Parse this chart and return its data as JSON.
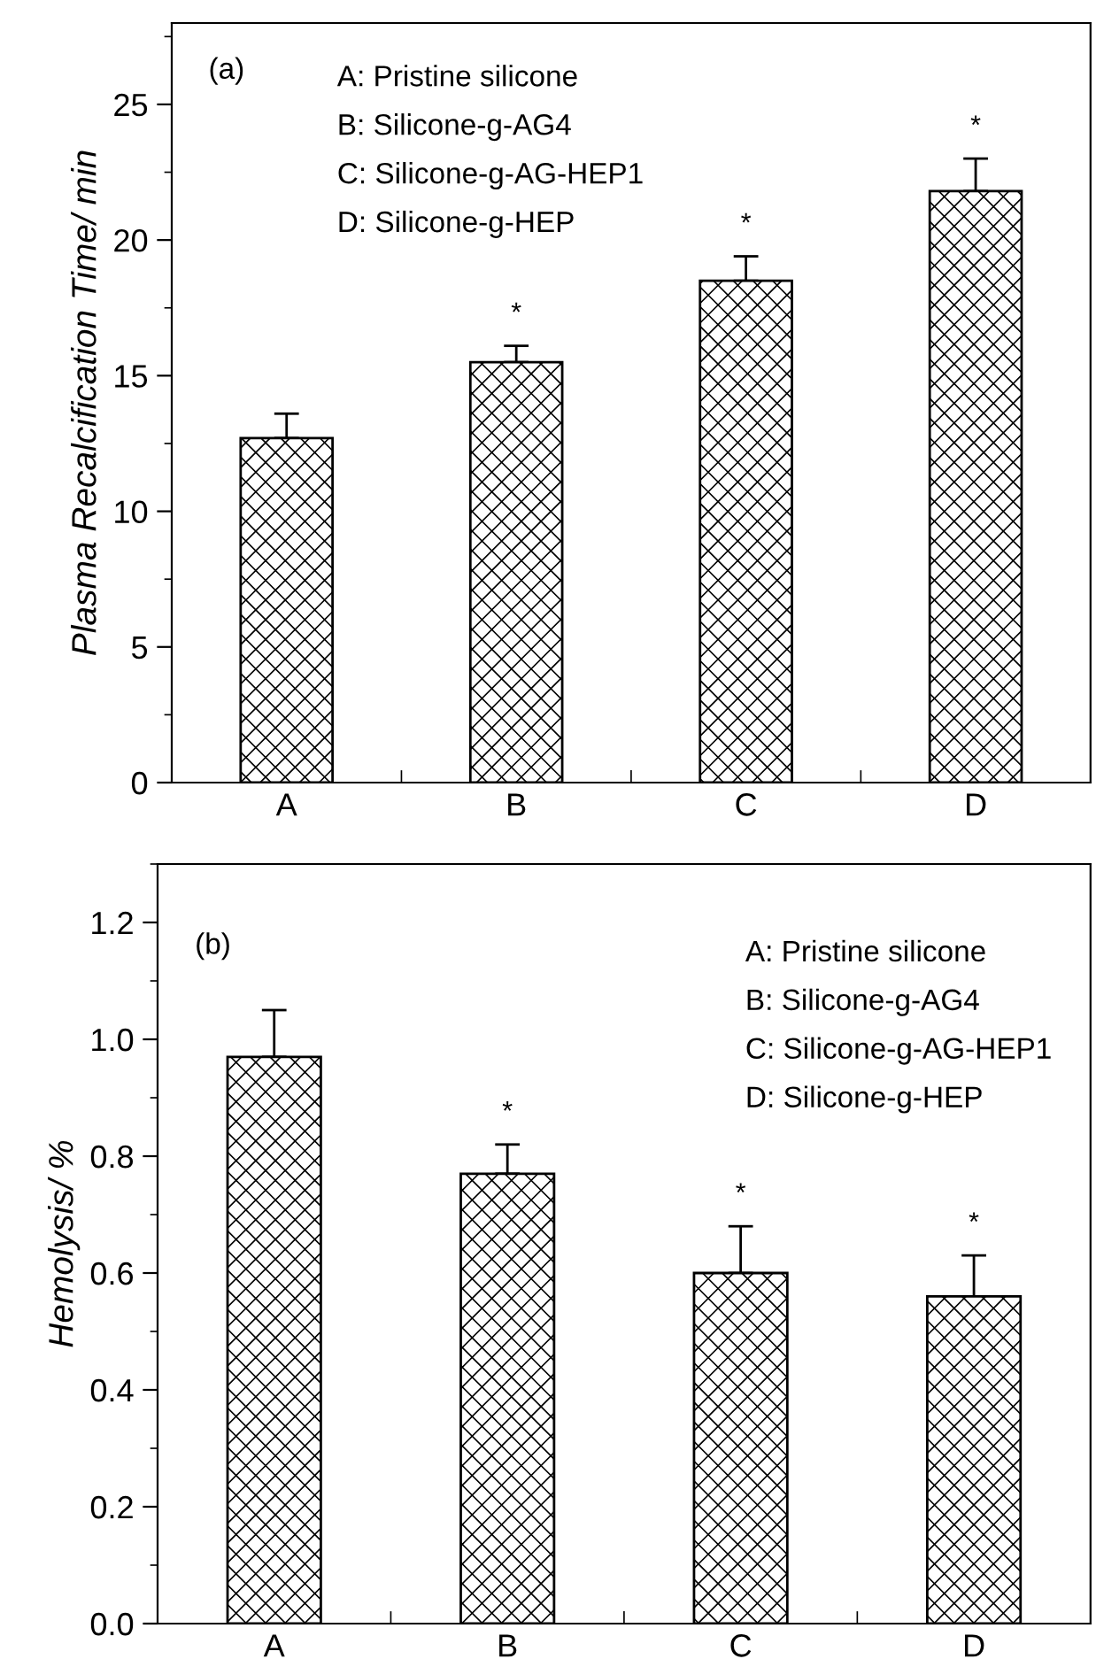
{
  "chart_data": [
    {
      "type": "bar",
      "ylabel": "Plasma Recalcification Time/ min",
      "categories": [
        "A",
        "B",
        "C",
        "D"
      ],
      "values": [
        12.7,
        15.5,
        18.5,
        21.8
      ],
      "errors": [
        [
          12.7,
          13.6
        ],
        [
          15.5,
          16.1
        ],
        [
          18.5,
          19.4
        ],
        [
          21.8,
          23.0
        ]
      ],
      "value_labels": [
        null,
        "*",
        "*",
        "*"
      ],
      "color": "#000000",
      "ylim": [
        0,
        28
      ],
      "yticks": [
        0,
        5,
        10,
        15,
        20,
        25
      ],
      "grid": false,
      "legend": false,
      "annotations": [
        "(a)",
        "A: Pristine silicone",
        "B: Silicone-g-AG4",
        "C: Silicone-g-AG-HEP1",
        "D: Silicone-g-HEP"
      ]
    },
    {
      "type": "bar",
      "ylabel": "Hemolysis/ %",
      "categories": [
        "A",
        "B",
        "C",
        "D"
      ],
      "values": [
        0.97,
        0.77,
        0.6,
        0.56
      ],
      "errors": [
        [
          0.97,
          1.05
        ],
        [
          0.77,
          0.82
        ],
        [
          0.6,
          0.68
        ],
        [
          0.56,
          0.63
        ]
      ],
      "value_labels": [
        null,
        "*",
        "*",
        "*"
      ],
      "color": "#000000",
      "ylim": [
        0,
        1.3
      ],
      "yticks": [
        {
          "value": 0,
          "label": "0.0"
        },
        0.2,
        0.4,
        0.6,
        0.8,
        {
          "value": 1,
          "label": "1.0"
        },
        1.2
      ],
      "grid": false,
      "legend": false,
      "annotations": [
        "(b)",
        "A: Pristine silicone",
        "B: Silicone-g-AG4",
        "C: Silicone-g-AG-HEP1",
        "D: Silicone-g-HEP"
      ]
    }
  ]
}
